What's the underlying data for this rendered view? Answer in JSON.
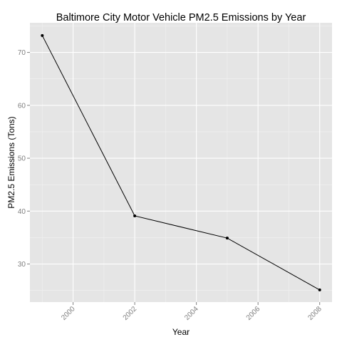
{
  "chart_data": {
    "type": "line",
    "title": "Baltimore City Motor Vehicle PM2.5 Emissions by Year",
    "xlabel": "Year",
    "ylabel": "PM2.5 Emissions (Tons)",
    "x": [
      1999,
      2002,
      2005,
      2008
    ],
    "series": [
      {
        "values": [
          73.2,
          39.1,
          34.9,
          25.1
        ]
      }
    ],
    "xlim": [
      1998.6,
      2008.4
    ],
    "ylim": [
      22.8,
      75.6
    ],
    "xticks": [
      "2000",
      "2002",
      "2004",
      "2006",
      "2008"
    ],
    "yticks": [
      "30",
      "40",
      "50",
      "60",
      "70"
    ],
    "grid": true,
    "colors": {
      "panel": "#e5e5e5",
      "line": "#000000",
      "tick_text": "#7f7f7f"
    }
  }
}
